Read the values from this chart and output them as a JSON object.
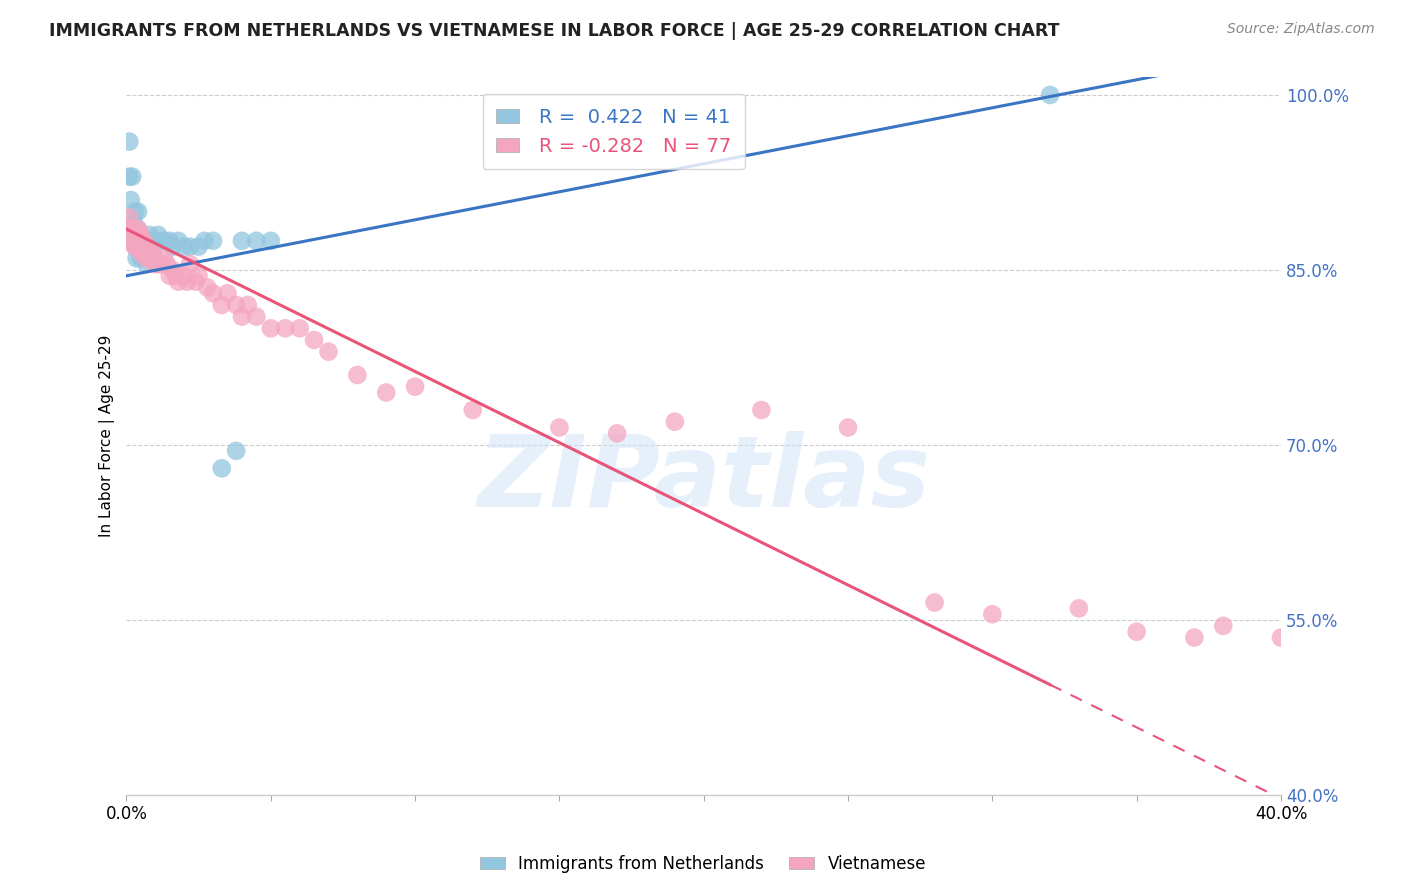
{
  "title": "IMMIGRANTS FROM NETHERLANDS VS VIETNAMESE IN LABOR FORCE | AGE 25-29 CORRELATION CHART",
  "source": "Source: ZipAtlas.com",
  "ylabel": "In Labor Force | Age 25-29",
  "xlim": [
    0.0,
    0.4
  ],
  "ylim": [
    0.4,
    1.015
  ],
  "yticks": [
    0.4,
    0.55,
    0.7,
    0.85,
    1.0
  ],
  "r_netherlands": 0.422,
  "n_netherlands": 41,
  "r_vietnamese": -0.282,
  "n_vietnamese": 77,
  "netherlands_color": "#92c5de",
  "vietnamese_color": "#f4a6c0",
  "netherlands_line_color": "#3a75c4",
  "vietnamese_line_color": "#e8547a",
  "watermark": "ZIPatlas",
  "background_color": "#ffffff",
  "nl_intercept": 0.845,
  "nl_slope": 0.48,
  "vn_intercept": 0.885,
  "vn_slope": -1.22,
  "nl_x": [
    0.0005,
    0.001,
    0.001,
    0.0015,
    0.002,
    0.002,
    0.0025,
    0.003,
    0.003,
    0.003,
    0.0035,
    0.004,
    0.004,
    0.004,
    0.005,
    0.005,
    0.006,
    0.006,
    0.007,
    0.007,
    0.008,
    0.008,
    0.009,
    0.01,
    0.011,
    0.012,
    0.013,
    0.015,
    0.016,
    0.018,
    0.02,
    0.022,
    0.025,
    0.027,
    0.03,
    0.033,
    0.038,
    0.04,
    0.045,
    0.05,
    0.32
  ],
  "nl_y": [
    0.88,
    0.93,
    0.96,
    0.91,
    0.88,
    0.93,
    0.89,
    0.87,
    0.88,
    0.9,
    0.86,
    0.87,
    0.885,
    0.9,
    0.86,
    0.875,
    0.87,
    0.875,
    0.855,
    0.875,
    0.875,
    0.88,
    0.87,
    0.875,
    0.88,
    0.875,
    0.875,
    0.875,
    0.87,
    0.875,
    0.87,
    0.87,
    0.87,
    0.875,
    0.875,
    0.68,
    0.695,
    0.875,
    0.875,
    0.875,
    1.0
  ],
  "vn_x": [
    0.0005,
    0.0005,
    0.001,
    0.001,
    0.001,
    0.0015,
    0.002,
    0.002,
    0.002,
    0.0025,
    0.003,
    0.003,
    0.003,
    0.003,
    0.0035,
    0.004,
    0.004,
    0.004,
    0.004,
    0.005,
    0.005,
    0.005,
    0.005,
    0.006,
    0.006,
    0.006,
    0.007,
    0.007,
    0.007,
    0.008,
    0.008,
    0.009,
    0.009,
    0.01,
    0.01,
    0.011,
    0.012,
    0.013,
    0.014,
    0.015,
    0.016,
    0.017,
    0.018,
    0.02,
    0.021,
    0.022,
    0.024,
    0.025,
    0.028,
    0.03,
    0.033,
    0.035,
    0.038,
    0.04,
    0.042,
    0.045,
    0.05,
    0.055,
    0.06,
    0.065,
    0.07,
    0.08,
    0.09,
    0.1,
    0.12,
    0.15,
    0.17,
    0.19,
    0.22,
    0.25,
    0.28,
    0.3,
    0.33,
    0.35,
    0.37,
    0.38,
    0.4
  ],
  "vn_y": [
    0.875,
    0.885,
    0.875,
    0.885,
    0.895,
    0.88,
    0.875,
    0.88,
    0.885,
    0.875,
    0.87,
    0.875,
    0.88,
    0.885,
    0.87,
    0.87,
    0.875,
    0.88,
    0.885,
    0.865,
    0.87,
    0.875,
    0.88,
    0.865,
    0.87,
    0.875,
    0.86,
    0.865,
    0.87,
    0.86,
    0.865,
    0.86,
    0.865,
    0.855,
    0.86,
    0.855,
    0.855,
    0.86,
    0.855,
    0.845,
    0.85,
    0.845,
    0.84,
    0.845,
    0.84,
    0.855,
    0.84,
    0.845,
    0.835,
    0.83,
    0.82,
    0.83,
    0.82,
    0.81,
    0.82,
    0.81,
    0.8,
    0.8,
    0.8,
    0.79,
    0.78,
    0.76,
    0.745,
    0.75,
    0.73,
    0.715,
    0.71,
    0.72,
    0.73,
    0.715,
    0.565,
    0.555,
    0.56,
    0.54,
    0.535,
    0.545,
    0.535
  ]
}
